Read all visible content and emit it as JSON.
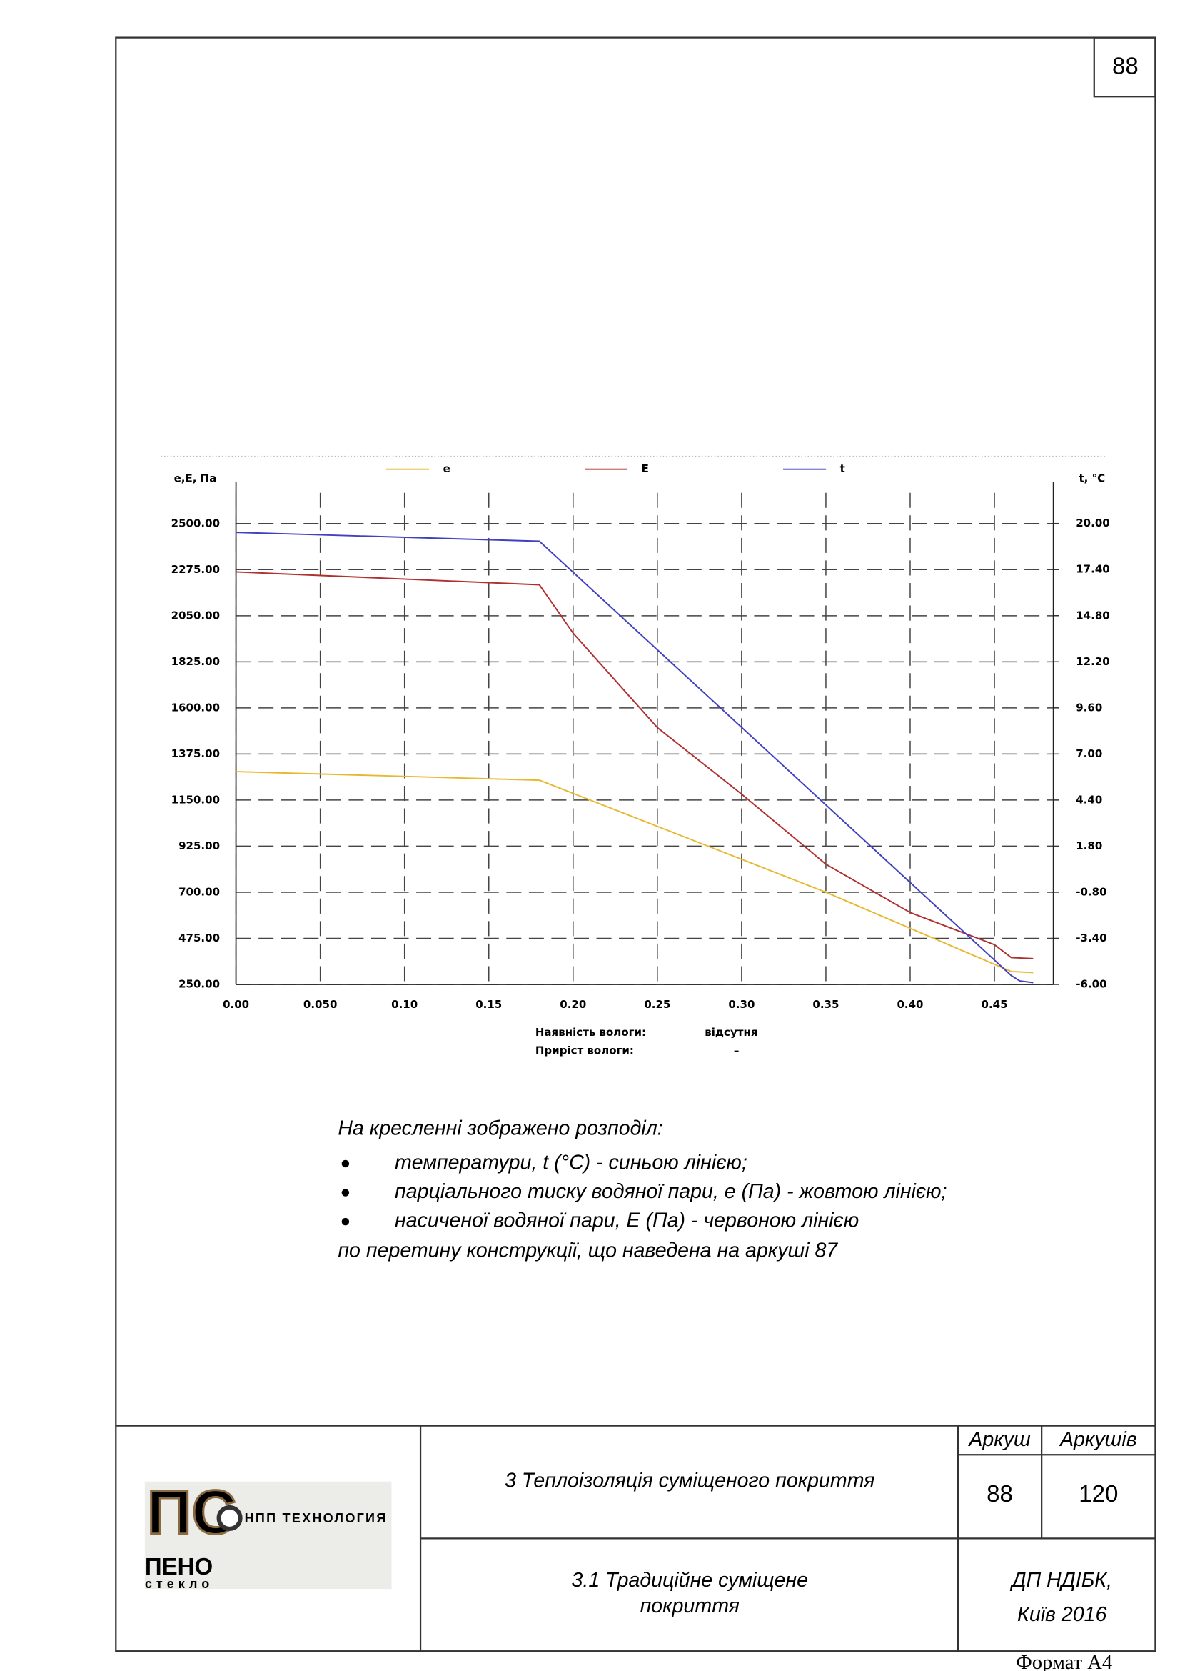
{
  "document": {
    "page_number": "88",
    "caption": {
      "intro": "На кресленні зображено розподіл:",
      "items": [
        "температури, t (°C) - синьою лінією;",
        "парціального тиску водяної пари, е (Па) - жовтою лінією;",
        "насиченої водяної пари, Е (Па) - червоною лінією"
      ],
      "outro": "по перетину конструкції, що наведена на аркуші 87"
    },
    "stamp": {
      "title": "3 Теплоізоляція суміщеного покриття",
      "sheet_label": "Аркуш",
      "sheets_label": "Аркушів",
      "sheet": "88",
      "sheets": "120",
      "subtitle_lines": [
        "3.1 Традиційне суміщене",
        "покриття"
      ],
      "org_lines": [
        "ДП НДІБК,",
        "Київ 2016"
      ],
      "format": "Формат А4"
    },
    "logo": {
      "company": "НПП ТЕХНОЛОГИЯ",
      "mark": "ПС",
      "word1": "ПЕНО",
      "word2": "стекло"
    }
  },
  "chart_data": {
    "type": "line",
    "ylabel": "е,Е, Па",
    "y2label": "t, °C",
    "xlim": [
      0,
      0.485
    ],
    "xticks": [
      {
        "value": 0,
        "label": "0.00"
      },
      {
        "value": 0.05,
        "label": "0.050"
      },
      {
        "value": 0.1,
        "label": "0.10"
      },
      {
        "value": 0.15,
        "label": "0.15"
      },
      {
        "value": 0.2,
        "label": "0.20"
      },
      {
        "value": 0.25,
        "label": "0.25"
      },
      {
        "value": 0.3,
        "label": "0.30"
      },
      {
        "value": 0.35,
        "label": "0.35"
      },
      {
        "value": 0.4,
        "label": "0.40"
      },
      {
        "value": 0.45,
        "label": "0.45"
      }
    ],
    "ylim": [
      250,
      2650
    ],
    "yticks": [
      {
        "value": 250,
        "label": "250.00"
      },
      {
        "value": 475,
        "label": "475.00"
      },
      {
        "value": 700,
        "label": "700.00"
      },
      {
        "value": 925,
        "label": "925.00"
      },
      {
        "value": 1150,
        "label": "1150.00"
      },
      {
        "value": 1375,
        "label": "1375.00"
      },
      {
        "value": 1600,
        "label": "1600.00"
      },
      {
        "value": 1825,
        "label": "1825.00"
      },
      {
        "value": 2050,
        "label": "2050.00"
      },
      {
        "value": 2275,
        "label": "2275.00"
      },
      {
        "value": 2500,
        "label": "2500.00"
      }
    ],
    "y2lim": [
      -6,
      21.73
    ],
    "y2ticks": [
      {
        "value": -6,
        "label": "-6.00"
      },
      {
        "value": -3.4,
        "label": "-3.40"
      },
      {
        "value": -0.8,
        "label": "-0.80"
      },
      {
        "value": 1.8,
        "label": "1.80"
      },
      {
        "value": 4.4,
        "label": "4.40"
      },
      {
        "value": 7,
        "label": "7.00"
      },
      {
        "value": 9.6,
        "label": "9.60"
      },
      {
        "value": 12.2,
        "label": "12.20"
      },
      {
        "value": 14.8,
        "label": "14.80"
      },
      {
        "value": 17.4,
        "label": "17.40"
      },
      {
        "value": 20,
        "label": "20.00"
      }
    ],
    "grid": true,
    "series": [
      {
        "name": "e",
        "color": "#e8b830",
        "x": [
          0,
          0.18,
          0.35,
          0.46,
          0.473
        ],
        "values": [
          1289,
          1247,
          700,
          313,
          308
        ]
      },
      {
        "name": "E",
        "color": "#b03030",
        "x": [
          0,
          0.18,
          0.2,
          0.25,
          0.3,
          0.35,
          0.4,
          0.45,
          0.46,
          0.473
        ],
        "values": [
          2264,
          2201,
          1965,
          1504,
          1179,
          837,
          601,
          444,
          381,
          376
        ]
      },
      {
        "name": "t",
        "color": "#4040c0",
        "axis": "y2",
        "x": [
          0,
          0.18,
          0.46,
          0.465,
          0.473
        ],
        "values": [
          19.5,
          19.0,
          -5.5,
          -5.8,
          -5.9
        ]
      }
    ],
    "annotations": [
      {
        "text": "Наявність вологи:",
        "value_text": "відсутня"
      },
      {
        "text": "Приріст вологи:",
        "value_text": "–"
      }
    ]
  }
}
